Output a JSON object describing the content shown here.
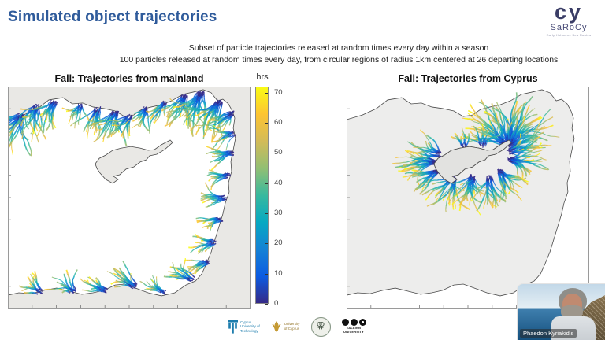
{
  "slide": {
    "title": "Simulated object trajectories",
    "subtitle_line1": "Subset of particle trajectories released at random times every day within a season",
    "subtitle_line2": "100 particles released at random times every day, from circular regions of radius 1km centered at 26 departing locations"
  },
  "logo": {
    "mark": "cy",
    "name": "SaRoCy",
    "tagline": "Early Holocene Sea Routes"
  },
  "chart_data": {
    "type": "map",
    "region": "Eastern Mediterranean Levantine Basin with Cyprus",
    "colormap": {
      "name": "parula",
      "label": "hrs",
      "vmax": 72,
      "ticks": [
        0,
        10,
        20,
        30,
        40,
        50,
        60,
        70
      ],
      "stops": [
        [
          "0",
          "#352a87"
        ],
        [
          "0.125",
          "#0c5ce2"
        ],
        [
          "0.25",
          "#1582d5"
        ],
        [
          "0.375",
          "#07a9c2"
        ],
        [
          "0.5",
          "#38b99e"
        ],
        [
          "0.625",
          "#92bf73"
        ],
        [
          "0.75",
          "#d3bb58"
        ],
        [
          "0.875",
          "#fdc432"
        ],
        [
          "1",
          "#f9fb15"
        ]
      ]
    },
    "coast": [
      [
        0,
        14.9
      ],
      [
        6.5,
        12.8
      ],
      [
        12.3,
        9.9
      ],
      [
        16.9,
        6.0
      ],
      [
        22.7,
        5.0
      ],
      [
        26.6,
        7.8
      ],
      [
        30.8,
        7.4
      ],
      [
        35.1,
        9.2
      ],
      [
        39.6,
        9.9
      ],
      [
        44.2,
        11.0
      ],
      [
        48.1,
        13.5
      ],
      [
        51.9,
        12.8
      ],
      [
        55.2,
        10.3
      ],
      [
        59.1,
        9.2
      ],
      [
        63.3,
        8.2
      ],
      [
        67.5,
        6.4
      ],
      [
        72.1,
        3.5
      ],
      [
        76.3,
        2.5
      ],
      [
        80.5,
        1.4
      ],
      [
        83.8,
        2.8
      ],
      [
        86.4,
        6.4
      ],
      [
        88.6,
        5.7
      ],
      [
        90.9,
        7.8
      ],
      [
        92.5,
        11.0
      ],
      [
        93.5,
        14.2
      ],
      [
        92.9,
        18.8
      ],
      [
        93.8,
        23.4
      ],
      [
        92.9,
        28.4
      ],
      [
        91.9,
        33.7
      ],
      [
        92.2,
        38.3
      ],
      [
        90.9,
        43.3
      ],
      [
        91.2,
        47.5
      ],
      [
        89.6,
        52.5
      ],
      [
        88.6,
        57.4
      ],
      [
        87.0,
        63.1
      ],
      [
        85.4,
        68.8
      ],
      [
        83.8,
        74.5
      ],
      [
        81.8,
        79.8
      ],
      [
        79.9,
        84.4
      ],
      [
        77.3,
        87.6
      ],
      [
        73.4,
        89.4
      ],
      [
        68.8,
        92.9
      ],
      [
        63.3,
        94.3
      ],
      [
        57.8,
        92.9
      ],
      [
        52.6,
        90.8
      ],
      [
        48.1,
        89.0
      ],
      [
        44.2,
        89.4
      ],
      [
        39.6,
        91.8
      ],
      [
        35.1,
        92.9
      ],
      [
        30.5,
        93.6
      ],
      [
        25.3,
        92.2
      ],
      [
        20.1,
        90.8
      ],
      [
        14.9,
        91.8
      ],
      [
        9.7,
        93.3
      ],
      [
        4.5,
        92.9
      ],
      [
        0,
        94.0
      ]
    ],
    "cyprus": [
      [
        36.0,
        34.8
      ],
      [
        37.7,
        32.3
      ],
      [
        40.3,
        30.9
      ],
      [
        43.2,
        28.7
      ],
      [
        46.8,
        27.7
      ],
      [
        50.6,
        27.0
      ],
      [
        54.5,
        27.7
      ],
      [
        57.8,
        28.7
      ],
      [
        60.4,
        28.4
      ],
      [
        63.3,
        26.2
      ],
      [
        66.9,
        24.1
      ],
      [
        67.9,
        25.2
      ],
      [
        64.6,
        28.4
      ],
      [
        61.4,
        30.5
      ],
      [
        58.4,
        31.2
      ],
      [
        57.1,
        33.0
      ],
      [
        54.5,
        34.0
      ],
      [
        51.9,
        36.2
      ],
      [
        48.7,
        37.2
      ],
      [
        46.1,
        39.7
      ],
      [
        43.5,
        40.4
      ],
      [
        45.5,
        41.8
      ],
      [
        43.2,
        43.6
      ],
      [
        40.3,
        41.8
      ],
      [
        38.0,
        39.0
      ],
      [
        36.7,
        36.9
      ]
    ],
    "maps": [
      {
        "title": "Fall: Trajectories from mainland",
        "sea": "#ffffff",
        "land": "#e9e8e5",
        "cyprus_fill": "#e9e8e5",
        "seed": 7,
        "redraw_cyprus": false,
        "bundles": [
          [
            6,
            13,
            225,
            55,
            22,
            8,
            20
          ],
          [
            12,
            9,
            245,
            50,
            20,
            7,
            18
          ],
          [
            19,
            7,
            235,
            45,
            16,
            6,
            15
          ],
          [
            30,
            8.5,
            250,
            40,
            12,
            5,
            12
          ],
          [
            37,
            10,
            255,
            45,
            16,
            6,
            14
          ],
          [
            44.5,
            12,
            245,
            50,
            18,
            7,
            16
          ],
          [
            50,
            13.5,
            230,
            45,
            14,
            6,
            13
          ],
          [
            57,
            10,
            245,
            40,
            12,
            5,
            12
          ],
          [
            65,
            7.5,
            245,
            40,
            12,
            5,
            12
          ],
          [
            73,
            4.5,
            245,
            45,
            18,
            7,
            18
          ],
          [
            80,
            3,
            250,
            55,
            22,
            9,
            22
          ],
          [
            87,
            7,
            240,
            55,
            22,
            8,
            20
          ],
          [
            92,
            12,
            220,
            45,
            16,
            6,
            16
          ],
          [
            92.5,
            21,
            200,
            35,
            12,
            5,
            11
          ],
          [
            92,
            30,
            195,
            35,
            13,
            5,
            12
          ],
          [
            91,
            40,
            200,
            32,
            12,
            5,
            11
          ],
          [
            89.5,
            50,
            195,
            35,
            13,
            5,
            12
          ],
          [
            87.5,
            60,
            200,
            33,
            12,
            5,
            11
          ],
          [
            85,
            70,
            195,
            32,
            12,
            5,
            11
          ],
          [
            82,
            79,
            205,
            35,
            12,
            5,
            11
          ],
          [
            76,
            87,
            155,
            40,
            13,
            6,
            13
          ],
          [
            64,
            93,
            150,
            35,
            12,
            5,
            11
          ],
          [
            52,
            90,
            140,
            40,
            15,
            6,
            13
          ],
          [
            40,
            92,
            150,
            35,
            12,
            5,
            11
          ],
          [
            27,
            92,
            140,
            40,
            13,
            5,
            12
          ],
          [
            13,
            92.5,
            130,
            35,
            11,
            5,
            10
          ]
        ]
      },
      {
        "title": "Fall: Trajectories from Cyprus",
        "sea": "#ededec",
        "land": "#ffffff",
        "cyprus_fill": "#e2e2e0",
        "seed": 11,
        "redraw_cyprus": true,
        "bundles": [
          [
            67,
            25,
            80,
            100,
            40,
            9,
            24
          ],
          [
            66,
            26,
            140,
            70,
            28,
            8,
            24
          ],
          [
            68,
            27,
            25,
            60,
            18,
            6,
            16
          ],
          [
            56,
            26.5,
            95,
            55,
            12,
            4,
            10
          ],
          [
            48,
            26.5,
            105,
            45,
            10,
            4,
            9
          ],
          [
            36.5,
            34,
            180,
            75,
            24,
            7,
            18
          ],
          [
            38,
            30.5,
            150,
            55,
            14,
            6,
            14
          ],
          [
            37.5,
            38.5,
            215,
            55,
            16,
            6,
            15
          ],
          [
            44,
            41.5,
            250,
            60,
            20,
            7,
            17
          ],
          [
            52,
            40.5,
            260,
            65,
            22,
            7,
            18
          ],
          [
            59,
            41,
            265,
            55,
            18,
            7,
            16
          ],
          [
            63.5,
            38,
            305,
            60,
            18,
            7,
            16
          ],
          [
            67.5,
            33,
            345,
            65,
            20,
            7,
            18
          ],
          [
            67,
            29.5,
            15,
            50,
            14,
            6,
            14
          ]
        ]
      }
    ]
  },
  "footer": {
    "cut": {
      "l1": "Cyprus",
      "l2": "University of",
      "l3": "Technology"
    },
    "ucy": {
      "l1": "University",
      "l2": "of Cyprus"
    },
    "taltech": {
      "l1": "TALLINN",
      "l2": "UNIVERSITY"
    }
  },
  "webcam": {
    "name": "Phaedon Kyriakidis"
  }
}
